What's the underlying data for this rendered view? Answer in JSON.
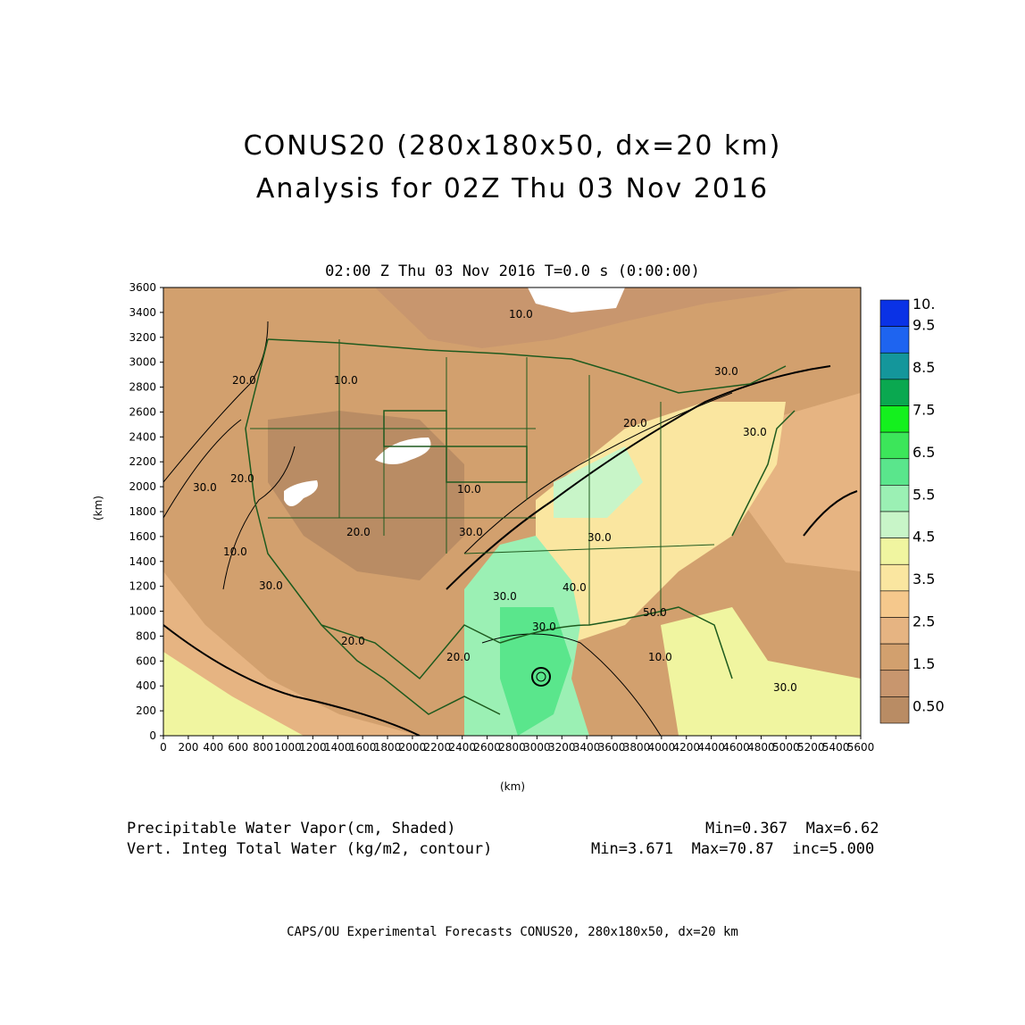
{
  "header": {
    "title_line1": "CONUS20 (280x180x50, dx=20 km)",
    "title_line2": "Analysis for 02Z Thu 03 Nov 2016",
    "subtitle": "02:00 Z Thu 03 Nov 2016    T=0.0 s (0:00:00)"
  },
  "axes": {
    "ylabel": "(km)",
    "xlabel": "(km)",
    "y_ticks": [
      "0",
      "200",
      "400",
      "600",
      "800",
      "1000",
      "1200",
      "1400",
      "1600",
      "1800",
      "2000",
      "2200",
      "2400",
      "2600",
      "2800",
      "3000",
      "3200",
      "3400",
      "3600"
    ],
    "x_ticks": [
      "0",
      "200",
      "400",
      "600",
      "800",
      "1000",
      "1200",
      "1400",
      "1600",
      "1800",
      "2000",
      "2200",
      "2400",
      "2600",
      "2800",
      "3000",
      "3200",
      "3400",
      "3600",
      "3800",
      "4000",
      "4200",
      "4400",
      "4600",
      "4800",
      "5000",
      "5200",
      "5400",
      "5600"
    ],
    "x_range": [
      0,
      5600
    ],
    "y_range": [
      0,
      3600
    ]
  },
  "colorbar": {
    "labels": [
      "10.",
      "9.5",
      "8.5",
      "7.5",
      "6.5",
      "5.5",
      "4.5",
      "3.5",
      "2.5",
      "1.5",
      "0.50"
    ],
    "colors": [
      "#0a32e6",
      "#1e64f0",
      "#14969b",
      "#0aa850",
      "#14f01e",
      "#3ce65a",
      "#5ae68c",
      "#9bf0b4",
      "#c8f5c8",
      "#f0f5a0",
      "#fae6a0",
      "#f5c88c",
      "#e6b482",
      "#d2a06e",
      "#c8966e",
      "#b98c64"
    ]
  },
  "contour_labels": [
    "20.0",
    "10.0",
    "30.0",
    "20.0",
    "10.0",
    "20.0",
    "10.0",
    "30.0",
    "20.0",
    "30.0",
    "10.0",
    "20.0",
    "30.0",
    "30.0",
    "40.0",
    "30.0",
    "50.0",
    "30.0",
    "30.0",
    "30.0",
    "20.0",
    "10.0"
  ],
  "legend": {
    "field1": "Precipitable Water Vapor(cm, Shaded)",
    "field1_stats": "Min=0.367  Max=6.62",
    "field2": "Vert. Integ Total Water (kg/m2, contour)",
    "field2_stats": "Min=3.671  Max=70.87  inc=5.000"
  },
  "footer": "CAPS/OU Experimental Forecasts   CONUS20, 280x180x50, dx=20 km"
}
